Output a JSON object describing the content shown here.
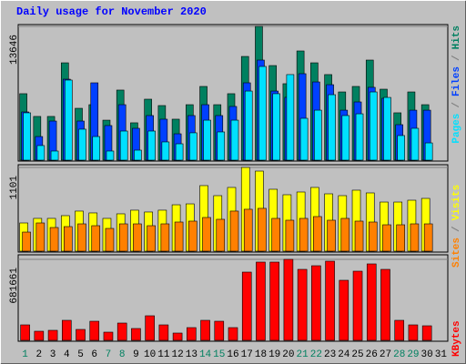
{
  "chart_data": [
    {
      "type": "bar",
      "title": "Daily usage for November 2020",
      "ylim": [
        0,
        13646
      ],
      "yticks": [
        13646
      ],
      "legend_separator": "/",
      "series": [
        {
          "name": "Hits",
          "color": "#008060",
          "values": [
            6780,
            4460,
            4460,
            9930,
            5290,
            5660,
            4080,
            7150,
            3810,
            6220,
            5570,
            4180,
            5660,
            7520,
            5660,
            6780,
            10580,
            13646,
            9650,
            7800,
            11140,
            9930,
            8730,
            6960,
            7520,
            10210,
            7240,
            4830,
            6960,
            5660,
            null
          ]
        },
        {
          "name": "Files",
          "color": "#0040ff",
          "values": [
            4920,
            2410,
            3990,
            8260,
            3990,
            7890,
            3530,
            5660,
            3250,
            4550,
            4180,
            2690,
            4550,
            5660,
            4550,
            5480,
            7890,
            10210,
            7050,
            6410,
            8820,
            7980,
            7700,
            5100,
            5940,
            7430,
            6310,
            3620,
            5100,
            5100,
            null
          ]
        },
        {
          "name": "Pages",
          "color": "#00e0ff",
          "values": [
            4830,
            1490,
            930,
            8170,
            3160,
            2410,
            930,
            2970,
            1020,
            2970,
            1860,
            1670,
            2790,
            4080,
            2880,
            4080,
            7050,
            9560,
            6780,
            8730,
            4270,
            5100,
            6680,
            4550,
            4730,
            6960,
            6400,
            2510,
            3250,
            1760,
            null
          ]
        }
      ]
    },
    {
      "type": "bar",
      "ylim": [
        0,
        1101
      ],
      "yticks": [
        1101
      ],
      "legend_separator": "/",
      "series": [
        {
          "name": "Visits",
          "color": "#ffff00",
          "values": [
            371,
            431,
            431,
            467,
            527,
            503,
            431,
            491,
            539,
            515,
            539,
            610,
            622,
            862,
            730,
            838,
            1101,
            1053,
            814,
            742,
            778,
            838,
            754,
            730,
            802,
            766,
            646,
            646,
            670,
            694,
            null
          ]
        },
        {
          "name": "Sites",
          "color": "#ff8000",
          "values": [
            251,
            371,
            311,
            323,
            359,
            335,
            299,
            359,
            359,
            335,
            359,
            383,
            395,
            443,
            419,
            527,
            551,
            563,
            431,
            407,
            431,
            455,
            407,
            431,
            395,
            383,
            347,
            347,
            359,
            359,
            null
          ]
        }
      ]
    },
    {
      "type": "bar",
      "ylim": [
        0,
        681661
      ],
      "yticks": [
        681661
      ],
      "series": [
        {
          "name": "KBytes",
          "color": "#ff0000",
          "values": [
            130200,
            76600,
            84300,
            168500,
            91900,
            160800,
            68900,
            145500,
            99600,
            206800,
            130200,
            61300,
            107200,
            168500,
            160800,
            107200,
            574400,
            658700,
            658700,
            681661,
            597400,
            628000,
            666300,
            505500,
            582100,
            643400,
            597400,
            168500,
            130200,
            122500,
            null
          ]
        }
      ],
      "categories": [
        1,
        2,
        3,
        4,
        5,
        6,
        7,
        8,
        9,
        10,
        11,
        12,
        13,
        14,
        15,
        16,
        17,
        18,
        19,
        20,
        21,
        22,
        23,
        24,
        25,
        26,
        27,
        28,
        29,
        30,
        31
      ],
      "category_colors": [
        "#008060",
        "#000000",
        "#000000",
        "#000000",
        "#000000",
        "#000000",
        "#008060",
        "#008060",
        "#000000",
        "#000000",
        "#000000",
        "#000000",
        "#000000",
        "#008060",
        "#008060",
        "#000000",
        "#000000",
        "#000000",
        "#000000",
        "#000000",
        "#008060",
        "#008060",
        "#000000",
        "#000000",
        "#000000",
        "#000000",
        "#000000",
        "#008060",
        "#008060",
        "#000000",
        "#000000"
      ]
    }
  ]
}
